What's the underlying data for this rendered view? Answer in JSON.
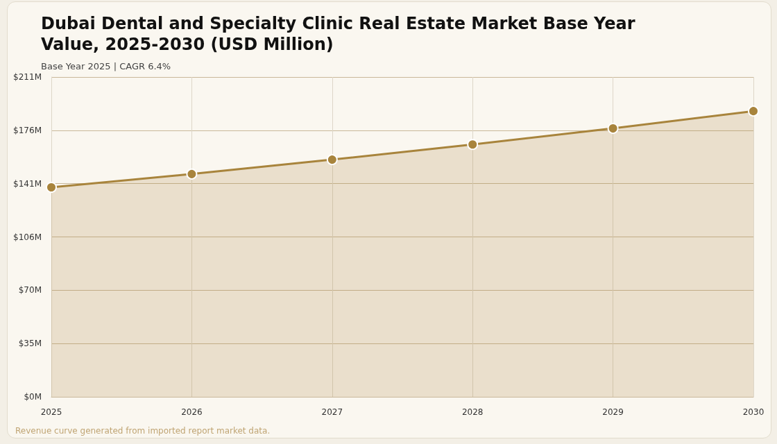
{
  "chart_data": {
    "type": "area",
    "title": "Dubai Dental and Specialty Clinic Real Estate Market Base Year Value, 2025-2030 (USD Million)",
    "subtitle": "Base Year 2025 | CAGR 6.4%",
    "categories": [
      "2025",
      "2026",
      "2027",
      "2028",
      "2029",
      "2030"
    ],
    "series": [
      {
        "color": "#a8843c",
        "values": [
          138.2,
          147.0,
          156.5,
          166.5,
          177.1,
          188.5
        ]
      }
    ],
    "ylim": [
      0,
      211
    ],
    "yticks": [
      {
        "value": 0,
        "label": "$0M"
      },
      {
        "value": 35.17,
        "label": "$35M"
      },
      {
        "value": 70.33,
        "label": "$70M"
      },
      {
        "value": 105.5,
        "label": "$106M"
      },
      {
        "value": 140.67,
        "label": "$141M"
      },
      {
        "value": 175.83,
        "label": "$176M"
      },
      {
        "value": 211,
        "label": "$211M"
      }
    ],
    "grid": true,
    "marker": "circle",
    "annotations": [
      "Revenue curve generated from imported report market data."
    ]
  }
}
